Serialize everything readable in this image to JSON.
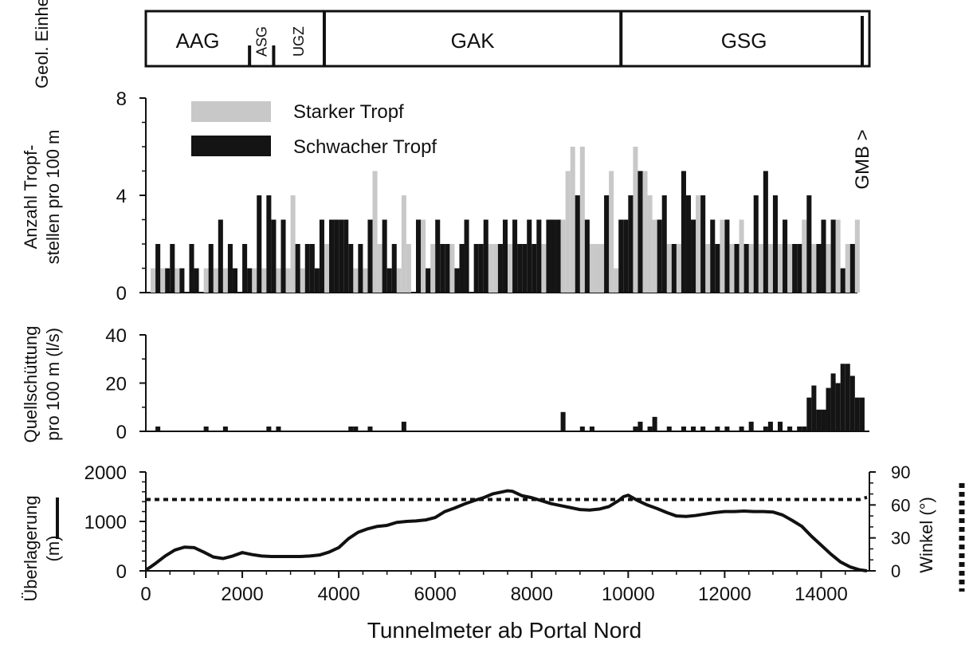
{
  "colors": {
    "strong": "#c8c8c8",
    "weak": "#141414",
    "ink": "#111111"
  },
  "chart_data": [
    {
      "type": "table",
      "title": "",
      "ylabel": "Geol. Einheit",
      "units": [
        {
          "label": "AAG",
          "start": 0,
          "end": 2150,
          "vertical": false
        },
        {
          "label": "ASG",
          "start": 2150,
          "end": 2650,
          "vertical": true
        },
        {
          "label": "UGZ",
          "start": 2650,
          "end": 3700,
          "vertical": true
        },
        {
          "label": "GAK",
          "start": 3700,
          "end": 9850,
          "vertical": false
        },
        {
          "label": "GSG",
          "start": 9850,
          "end": 14950,
          "vertical": false
        }
      ],
      "annotation": "GMB >"
    },
    {
      "type": "bar",
      "ylabel": "Anzahl Tropf-\nstellen pro 100 m",
      "ylim": [
        0,
        8
      ],
      "yticks": [
        0,
        4,
        8
      ],
      "xlim": [
        0,
        15000
      ],
      "bin_width": 100,
      "series": [
        {
          "name": "Starker Tropf",
          "color": "#c8c8c8",
          "x": [
            100,
            300,
            600,
            1200,
            1400,
            1600,
            2200,
            2400,
            2700,
            2900,
            3000,
            3200,
            3700,
            4300,
            4500,
            4700,
            4800,
            5200,
            5300,
            5400,
            5700,
            5900,
            6300,
            7100,
            7200,
            7500,
            8200,
            8600,
            8700,
            8800,
            9000,
            9200,
            9300,
            9400,
            9600,
            9700,
            10100,
            10300,
            10400,
            10500,
            10800,
            11000,
            11400,
            11600,
            11900,
            12100,
            12300,
            12500,
            12700,
            12900,
            13100,
            13300,
            13600,
            13800,
            14100,
            14300,
            14500,
            14700
          ],
          "values": [
            1,
            1,
            1,
            1,
            1,
            1,
            1,
            1,
            1,
            1,
            4,
            1,
            2,
            1,
            1,
            5,
            2,
            1,
            4,
            2,
            3,
            2,
            2,
            2,
            2,
            2,
            2,
            3,
            5,
            6,
            6,
            2,
            2,
            2,
            5,
            1,
            6,
            5,
            4,
            3,
            2,
            2,
            4,
            2,
            3,
            2,
            3,
            2,
            2,
            2,
            2,
            2,
            3,
            2,
            2,
            3,
            2,
            3
          ]
        },
        {
          "name": "Schwacher Tropf",
          "color": "#141414",
          "x": [
            200,
            400,
            500,
            700,
            900,
            1000,
            1300,
            1500,
            1700,
            1800,
            2000,
            2100,
            2300,
            2500,
            2600,
            2800,
            3100,
            3300,
            3400,
            3500,
            3600,
            3800,
            3900,
            4000,
            4100,
            4200,
            4400,
            4600,
            4900,
            5000,
            5100,
            5600,
            5800,
            6000,
            6100,
            6200,
            6400,
            6500,
            6600,
            6800,
            6900,
            7000,
            7300,
            7400,
            7600,
            7700,
            7800,
            7900,
            8000,
            8100,
            8300,
            8400,
            8500,
            8900,
            9100,
            9500,
            9800,
            9900,
            10000,
            10200,
            10600,
            10700,
            10900,
            11100,
            11200,
            11300,
            11500,
            11700,
            11800,
            12000,
            12200,
            12400,
            12600,
            12800,
            13000,
            13200,
            13400,
            13500,
            13700,
            13900,
            14000,
            14200,
            14400,
            14600
          ],
          "values": [
            2,
            1,
            2,
            1,
            2,
            1,
            2,
            3,
            2,
            1,
            2,
            1,
            4,
            4,
            3,
            3,
            2,
            2,
            2,
            1,
            3,
            3,
            3,
            3,
            3,
            2,
            2,
            3,
            3,
            1,
            2,
            3,
            1,
            3,
            2,
            2,
            1,
            2,
            3,
            2,
            2,
            3,
            2,
            3,
            3,
            2,
            2,
            3,
            2,
            3,
            3,
            3,
            3,
            4,
            3,
            4,
            3,
            3,
            4,
            5,
            3,
            4,
            2,
            5,
            4,
            3,
            4,
            3,
            2,
            3,
            2,
            2,
            4,
            5,
            4,
            3,
            2,
            2,
            4,
            2,
            3,
            3,
            1,
            2
          ]
        }
      ]
    },
    {
      "type": "bar",
      "ylabel": "Quellschüttung\npro 100 m (l/s)",
      "ylim": [
        0,
        40
      ],
      "yticks": [
        0,
        20,
        40
      ],
      "xlim": [
        0,
        15000
      ],
      "bin_width": 100,
      "x": [
        200,
        1200,
        1600,
        2500,
        2700,
        4200,
        4300,
        4600,
        5300,
        8600,
        9000,
        9200,
        10100,
        10200,
        10400,
        10500,
        10800,
        11100,
        11300,
        11500,
        11800,
        12000,
        12300,
        12500,
        12800,
        12900,
        13100,
        13300,
        13500,
        13600,
        13700,
        13800,
        13900,
        14000,
        14100,
        14200,
        14300,
        14400,
        14500,
        14600,
        14700,
        14800
      ],
      "values": [
        2,
        2,
        2,
        2,
        2,
        2,
        2,
        2,
        4,
        8,
        2,
        2,
        2,
        4,
        2,
        6,
        2,
        2,
        2,
        2,
        2,
        2,
        2,
        4,
        2,
        4,
        4,
        2,
        2,
        2,
        14,
        19,
        9,
        9,
        18,
        24,
        20,
        28,
        28,
        23,
        14,
        14
      ]
    },
    {
      "type": "line",
      "ylabel": "Überlagerung\n(m)",
      "ylabel2": "Winkel (°)",
      "xlabel": "Tunnelmeter ab Portal Nord",
      "xlim": [
        0,
        15000
      ],
      "xticks": [
        0,
        2000,
        4000,
        6000,
        8000,
        10000,
        12000,
        14000
      ],
      "ylim": [
        0,
        2000
      ],
      "yticks": [
        0,
        1000,
        2000
      ],
      "y2lim": [
        0,
        90
      ],
      "y2ticks": [
        0,
        30,
        60,
        90
      ],
      "series": [
        {
          "name": "Überlagerung",
          "style": "solid",
          "axis": "left",
          "x": [
            0,
            100,
            200,
            400,
            600,
            800,
            1000,
            1200,
            1400,
            1600,
            1800,
            2000,
            2200,
            2400,
            2600,
            2800,
            3000,
            3200,
            3400,
            3600,
            3800,
            4000,
            4200,
            4400,
            4600,
            4800,
            5000,
            5200,
            5400,
            5600,
            5800,
            6000,
            6200,
            6400,
            6600,
            6800,
            7000,
            7200,
            7400,
            7500,
            7600,
            7800,
            8000,
            8200,
            8400,
            8600,
            8800,
            9000,
            9200,
            9400,
            9600,
            9800,
            9900,
            10000,
            10200,
            10400,
            10600,
            10800,
            11000,
            11200,
            11400,
            11600,
            11800,
            12000,
            12200,
            12400,
            12600,
            12800,
            13000,
            13200,
            13400,
            13600,
            13800,
            14000,
            14200,
            14400,
            14600,
            14800,
            14950
          ],
          "values": [
            20,
            80,
            150,
            300,
            420,
            480,
            470,
            380,
            280,
            250,
            300,
            370,
            330,
            300,
            290,
            290,
            290,
            290,
            300,
            320,
            380,
            470,
            650,
            780,
            850,
            900,
            920,
            980,
            1000,
            1010,
            1030,
            1080,
            1200,
            1270,
            1350,
            1420,
            1480,
            1560,
            1600,
            1620,
            1610,
            1520,
            1480,
            1420,
            1360,
            1320,
            1280,
            1240,
            1230,
            1250,
            1300,
            1420,
            1500,
            1530,
            1420,
            1330,
            1260,
            1180,
            1110,
            1100,
            1120,
            1150,
            1180,
            1200,
            1200,
            1210,
            1200,
            1200,
            1190,
            1130,
            1020,
            900,
            700,
            520,
            340,
            180,
            80,
            20,
            0
          ]
        },
        {
          "name": "Winkel",
          "style": "dotted",
          "axis": "right",
          "x": [
            0,
            14800,
            14950
          ],
          "values": [
            65,
            65,
            67
          ]
        }
      ]
    }
  ]
}
